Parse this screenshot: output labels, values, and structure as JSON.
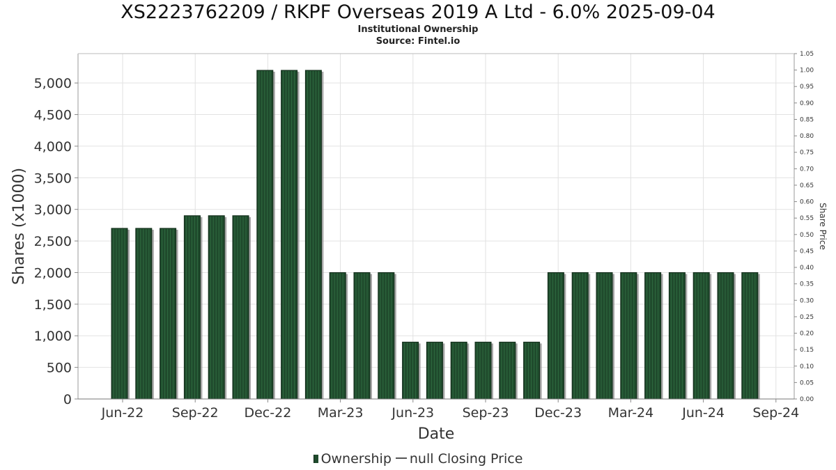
{
  "chart_data": {
    "type": "bar",
    "title": "XS2223762209 / RKPF Overseas 2019 A Ltd - 6.0% 2025-09-04",
    "subtitle_lines": [
      "Institutional Ownership",
      "Source: Fintel.io"
    ],
    "xlabel": "Date",
    "ylabel": "Shares (x1000)",
    "y2label": "Share Price",
    "ylim": [
      0,
      5200
    ],
    "y_ticks": [
      0,
      500,
      1000,
      1500,
      2000,
      2500,
      3000,
      3500,
      4000,
      4500,
      5000
    ],
    "y_tick_labels": [
      "0",
      "500",
      "1,000",
      "1,500",
      "2,000",
      "2,500",
      "3,000",
      "3,500",
      "4,000",
      "4,500",
      "5,000"
    ],
    "y2lim": [
      0,
      1.05
    ],
    "y2_tick_labels": [
      "0.00",
      "0.05",
      "0.10",
      "0.15",
      "0.20",
      "0.25",
      "0.30",
      "0.35",
      "0.40",
      "0.45",
      "0.50",
      "0.55",
      "0.60",
      "0.65",
      "0.70",
      "0.75",
      "0.80",
      "0.85",
      "0.90",
      "0.95",
      "1.00",
      "1.05"
    ],
    "x_tick_labels": [
      "Jun-22",
      "Sep-22",
      "Dec-22",
      "Mar-23",
      "Jun-23",
      "Sep-23",
      "Dec-23",
      "Mar-24",
      "Jun-24",
      "Sep-24"
    ],
    "grid": true,
    "legend_position": "bottom-center",
    "series": [
      {
        "name": "Ownership",
        "color": "#1f4a2c",
        "values": [
          2700,
          2700,
          2700,
          2900,
          2900,
          2900,
          5200,
          5200,
          5200,
          2000,
          2000,
          2000,
          900,
          900,
          900,
          900,
          900,
          900,
          2000,
          2000,
          2000,
          2000,
          2000,
          2000,
          2000,
          2000,
          2000
        ]
      }
    ],
    "legend": {
      "ownership_label": "Ownership",
      "price_label": "null Closing Price"
    }
  }
}
